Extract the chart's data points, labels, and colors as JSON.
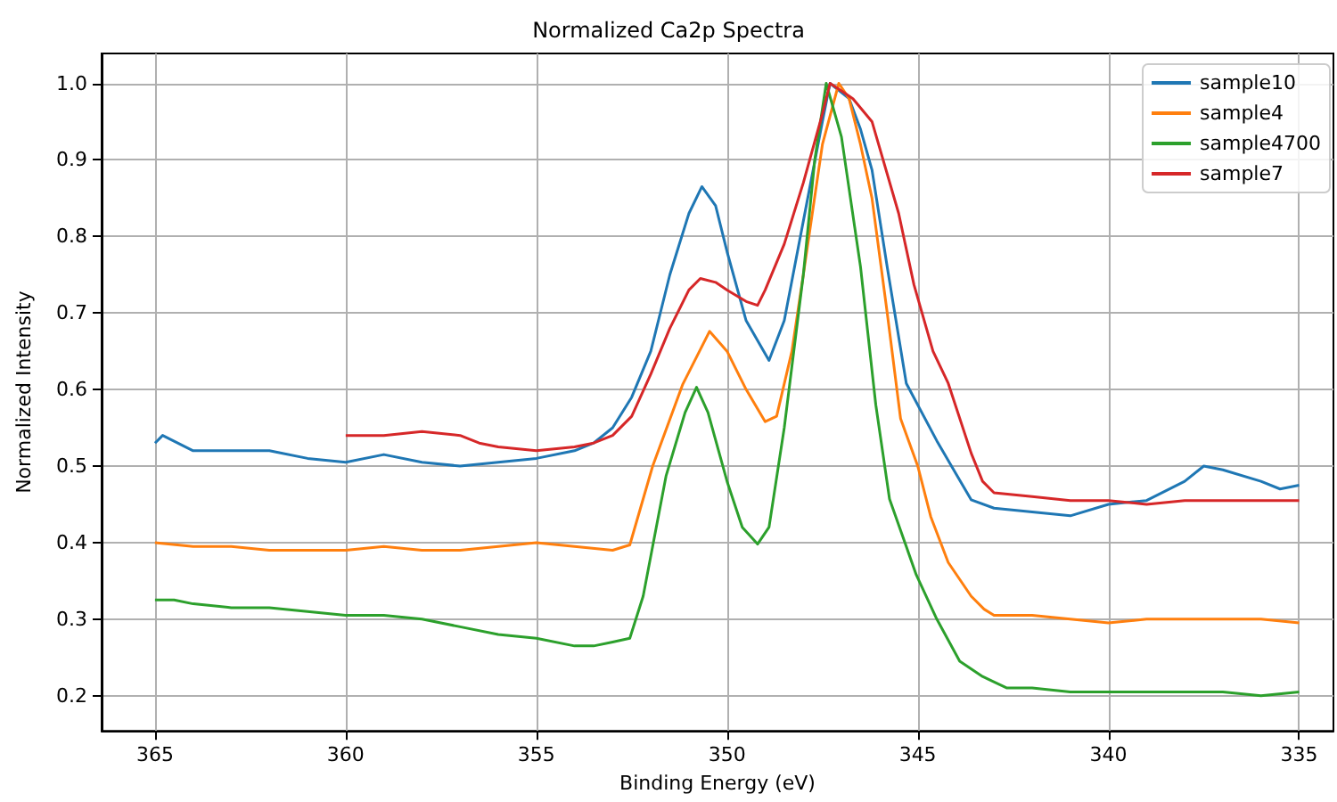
{
  "chart_data": {
    "type": "line",
    "title": "Normalized Ca2p Spectra",
    "xlabel": "Binding Energy (eV)",
    "ylabel": "Normalized Intensity",
    "xlim": [
      366.4,
      334.1
    ],
    "ylim": [
      0.154,
      1.039
    ],
    "xticks": [
      365,
      360,
      355,
      350,
      345,
      340,
      335
    ],
    "yticks": [
      0.2,
      0.3,
      0.4,
      0.5,
      0.6,
      0.7,
      0.8,
      0.9,
      {
        "value": 1,
        "label": "1.0"
      }
    ],
    "grid": true,
    "legend": "top right",
    "line_style": "solid",
    "marker": "none",
    "series": [
      {
        "name": "sample10",
        "color": "#1f77b4",
        "x": [
          365,
          364.8,
          364,
          363,
          362,
          361,
          360,
          359,
          358,
          357,
          356,
          355,
          354,
          353.5,
          353,
          352.5,
          352,
          351.5,
          351,
          350.66,
          350.3,
          350,
          349.5,
          348.9,
          348.5,
          348,
          347.5,
          347.3,
          346.8,
          346.5,
          346.2,
          345.8,
          345.3,
          344.5,
          344,
          343.6,
          343,
          342,
          341,
          340,
          339,
          338,
          337.5,
          337,
          336,
          335.5,
          335
        ],
        "values": [
          0.53,
          0.54,
          0.52,
          0.52,
          0.52,
          0.51,
          0.505,
          0.515,
          0.505,
          0.5,
          0.505,
          0.51,
          0.52,
          0.53,
          0.55,
          0.59,
          0.65,
          0.75,
          0.83,
          0.865,
          0.84,
          0.78,
          0.69,
          0.638,
          0.69,
          0.82,
          0.95,
          1.0,
          0.98,
          0.94,
          0.887,
          0.76,
          0.608,
          0.533,
          0.49,
          0.456,
          0.445,
          0.44,
          0.435,
          0.45,
          0.455,
          0.48,
          0.5,
          0.495,
          0.48,
          0.47,
          0.475
        ]
      },
      {
        "name": "sample4",
        "color": "#ff7f0e",
        "x": [
          365,
          364,
          363,
          362,
          361,
          360,
          359,
          358,
          357,
          356,
          355,
          354,
          353,
          352.55,
          351.95,
          351.16,
          350.46,
          350,
          349.5,
          349,
          348.7,
          348.3,
          348,
          347.5,
          347.07,
          346.8,
          346.5,
          346.2,
          345.8,
          345.45,
          345,
          344.66,
          344.2,
          343.6,
          343.26,
          343,
          342,
          341,
          340,
          339,
          338,
          337,
          336,
          335
        ],
        "values": [
          0.4,
          0.395,
          0.395,
          0.39,
          0.39,
          0.39,
          0.395,
          0.39,
          0.39,
          0.395,
          0.4,
          0.395,
          0.39,
          0.397,
          0.5,
          0.607,
          0.676,
          0.65,
          0.6,
          0.558,
          0.565,
          0.65,
          0.75,
          0.92,
          1.0,
          0.98,
          0.92,
          0.85,
          0.7,
          0.562,
          0.5,
          0.434,
          0.374,
          0.33,
          0.313,
          0.305,
          0.305,
          0.3,
          0.295,
          0.3,
          0.3,
          0.3,
          0.3,
          0.295
        ]
      },
      {
        "name": "sample4700",
        "color": "#2ca02c",
        "x": [
          365,
          364.5,
          364,
          363,
          362,
          361,
          360,
          359,
          358,
          357,
          356,
          355,
          354,
          353.5,
          353,
          352.55,
          352.2,
          351.6,
          351.1,
          350.8,
          350.5,
          350,
          349.6,
          349.2,
          348.9,
          348.5,
          348,
          347.7,
          347.4,
          347,
          346.5,
          346.1,
          345.74,
          345.04,
          344.5,
          343.9,
          343.3,
          342.66,
          342,
          341,
          340,
          339,
          338,
          337,
          336,
          335
        ],
        "values": [
          0.325,
          0.325,
          0.32,
          0.315,
          0.315,
          0.31,
          0.305,
          0.305,
          0.3,
          0.29,
          0.28,
          0.275,
          0.265,
          0.265,
          0.27,
          0.275,
          0.33,
          0.487,
          0.57,
          0.603,
          0.57,
          0.48,
          0.42,
          0.398,
          0.42,
          0.55,
          0.75,
          0.9,
          1.0,
          0.93,
          0.76,
          0.58,
          0.457,
          0.358,
          0.3,
          0.245,
          0.225,
          0.21,
          0.21,
          0.205,
          0.205,
          0.205,
          0.205,
          0.205,
          0.2,
          0.205
        ]
      },
      {
        "name": "sample7",
        "color": "#d62728",
        "x": [
          360,
          359,
          358,
          357,
          356.5,
          356,
          355,
          354,
          353.5,
          353,
          352.5,
          352,
          351.5,
          351,
          350.7,
          350.3,
          350,
          349.5,
          349.2,
          349,
          348.5,
          348,
          347.5,
          347.3,
          347,
          346.7,
          346.2,
          345.5,
          345.1,
          344.6,
          344.2,
          343.6,
          343.3,
          343,
          342,
          341,
          340,
          339,
          338,
          337,
          336,
          335
        ],
        "values": [
          0.54,
          0.54,
          0.545,
          0.54,
          0.53,
          0.525,
          0.52,
          0.525,
          0.53,
          0.54,
          0.565,
          0.62,
          0.68,
          0.73,
          0.745,
          0.74,
          0.73,
          0.715,
          0.71,
          0.73,
          0.79,
          0.87,
          0.96,
          1.0,
          0.99,
          0.98,
          0.95,
          0.83,
          0.737,
          0.65,
          0.608,
          0.517,
          0.48,
          0.465,
          0.46,
          0.455,
          0.455,
          0.45,
          0.455,
          0.455,
          0.455,
          0.455
        ]
      }
    ]
  }
}
